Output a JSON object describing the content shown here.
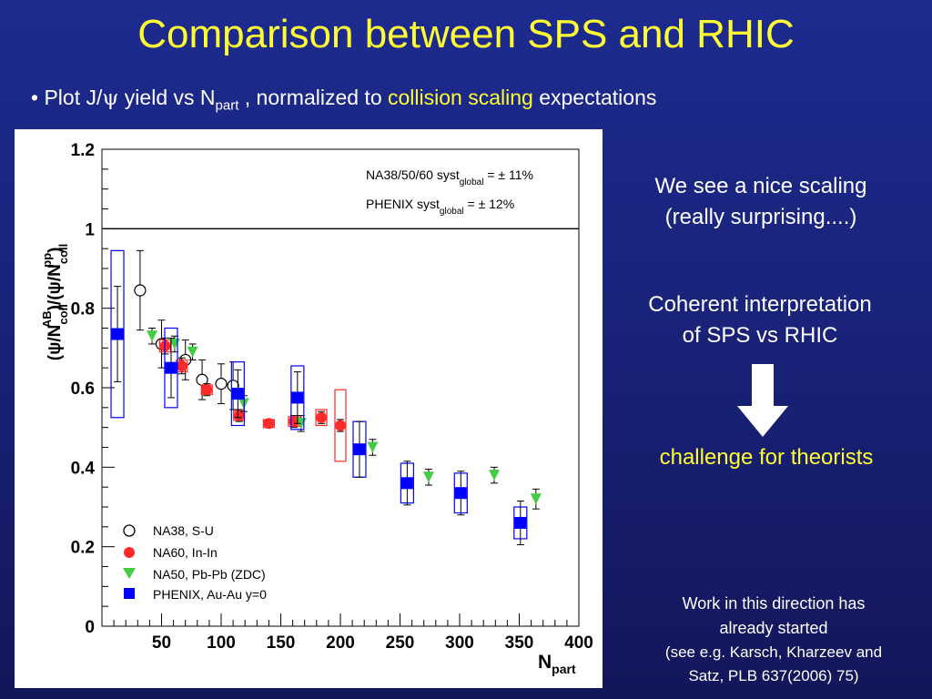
{
  "slide": {
    "title": "Comparison between SPS and RHIC",
    "bullet": {
      "marker": "•",
      "pre": "Plot  J/",
      "psi": "ψ",
      "mid": " yield vs N",
      "sub": "part",
      "mid2": " , normalized to ",
      "highlight": "collision scaling",
      "post": " expectations"
    },
    "note_scaling_line1": "We see a nice scaling",
    "note_scaling_line2": "(really surprising....)",
    "note_coherent_line1": "Coherent interpretation",
    "note_coherent_line2": "of SPS vs RHIC",
    "note_challenge": "challenge for theorists",
    "work_line1": "Work in this direction has",
    "work_line2": "already started",
    "work_line3": "(see e.g. Karsch, Kharzeev and",
    "work_line4": "Satz, PLB 637(2006) 75)",
    "colors": {
      "title": "#ffff33",
      "highlight": "#ffff33",
      "text": "#ffffff",
      "background": "#1a237a"
    }
  },
  "chart_data": {
    "type": "scatter",
    "ylabel": "(ψ/N_coll^AB)/(ψ/N_coll^pp)",
    "xlabel": "N_part",
    "xlim": [
      0,
      400
    ],
    "ylim": [
      0,
      1.2
    ],
    "x_ticks": [
      "50",
      "100",
      "150",
      "200",
      "250",
      "300",
      "350",
      "400"
    ],
    "y_ticks": [
      "0",
      "0.2",
      "0.4",
      "0.6",
      "0.8",
      "1",
      "1.2"
    ],
    "reference_line_y": 1,
    "syst_notes": [
      {
        "text": "NA38/50/60 syst",
        "sub": "global",
        "value": " = ± 11%"
      },
      {
        "text": "PHENIX syst",
        "sub": "global",
        "value": " = ± 12%"
      }
    ],
    "legend_position": "bottom-left",
    "series": [
      {
        "name": "NA38, S-U",
        "marker": "open-circle",
        "color": "#000000",
        "points": [
          {
            "x": 32,
            "y": 0.845,
            "err": 0.1
          },
          {
            "x": 50,
            "y": 0.71,
            "err": 0.06
          },
          {
            "x": 70,
            "y": 0.67,
            "err": 0.05
          },
          {
            "x": 84,
            "y": 0.62,
            "err": 0.05
          },
          {
            "x": 100,
            "y": 0.61,
            "err": 0.05
          },
          {
            "x": 110,
            "y": 0.605,
            "err": 0.06
          }
        ]
      },
      {
        "name": "NA60, In-In",
        "marker": "filled-circle",
        "color": "#ff2a2a",
        "points": [
          {
            "x": 53,
            "y": 0.705,
            "err": 0.02,
            "syst": 0.015
          },
          {
            "x": 67,
            "y": 0.655,
            "err": 0.02,
            "syst": 0.015
          },
          {
            "x": 88,
            "y": 0.595,
            "err": 0.015,
            "syst": 0.012
          },
          {
            "x": 115,
            "y": 0.53,
            "err": 0.015,
            "syst": 0.012
          },
          {
            "x": 140,
            "y": 0.51,
            "err": 0.01,
            "syst": 0.01
          },
          {
            "x": 161,
            "y": 0.515,
            "err": 0.015,
            "syst": 0.012
          },
          {
            "x": 184,
            "y": 0.525,
            "err": 0.015,
            "syst": 0.02
          },
          {
            "x": 200,
            "y": 0.505,
            "err": 0.015,
            "syst": 0.09
          }
        ]
      },
      {
        "name": "NA50, Pb-Pb (ZDC)",
        "marker": "down-triangle",
        "color": "#44cc44",
        "points": [
          {
            "x": 42,
            "y": 0.73,
            "err": 0.02
          },
          {
            "x": 61,
            "y": 0.71,
            "err": 0.02
          },
          {
            "x": 76,
            "y": 0.69,
            "err": 0.02
          },
          {
            "x": 119,
            "y": 0.56,
            "err": 0.02
          },
          {
            "x": 167,
            "y": 0.51,
            "err": 0.02
          },
          {
            "x": 227,
            "y": 0.45,
            "err": 0.02
          },
          {
            "x": 274,
            "y": 0.375,
            "err": 0.02
          },
          {
            "x": 329,
            "y": 0.38,
            "err": 0.02
          },
          {
            "x": 364,
            "y": 0.32,
            "err": 0.025
          }
        ]
      },
      {
        "name": "PHENIX, Au-Au y=0",
        "marker": "filled-square",
        "color": "#0000ff",
        "points": [
          {
            "x": 13,
            "y": 0.735,
            "err": 0.12,
            "syst": 0.21
          },
          {
            "x": 58,
            "y": 0.65,
            "err": 0.075,
            "syst": 0.1
          },
          {
            "x": 114,
            "y": 0.585,
            "err": 0.06,
            "syst": 0.08
          },
          {
            "x": 164,
            "y": 0.575,
            "err": 0.065,
            "syst": 0.08
          },
          {
            "x": 216,
            "y": 0.445,
            "err": 0.07,
            "syst": 0.07
          },
          {
            "x": 256,
            "y": 0.36,
            "err": 0.055,
            "syst": 0.05
          },
          {
            "x": 301,
            "y": 0.335,
            "err": 0.055,
            "syst": 0.05
          },
          {
            "x": 351,
            "y": 0.26,
            "err": 0.055,
            "syst": 0.04
          }
        ]
      }
    ]
  }
}
